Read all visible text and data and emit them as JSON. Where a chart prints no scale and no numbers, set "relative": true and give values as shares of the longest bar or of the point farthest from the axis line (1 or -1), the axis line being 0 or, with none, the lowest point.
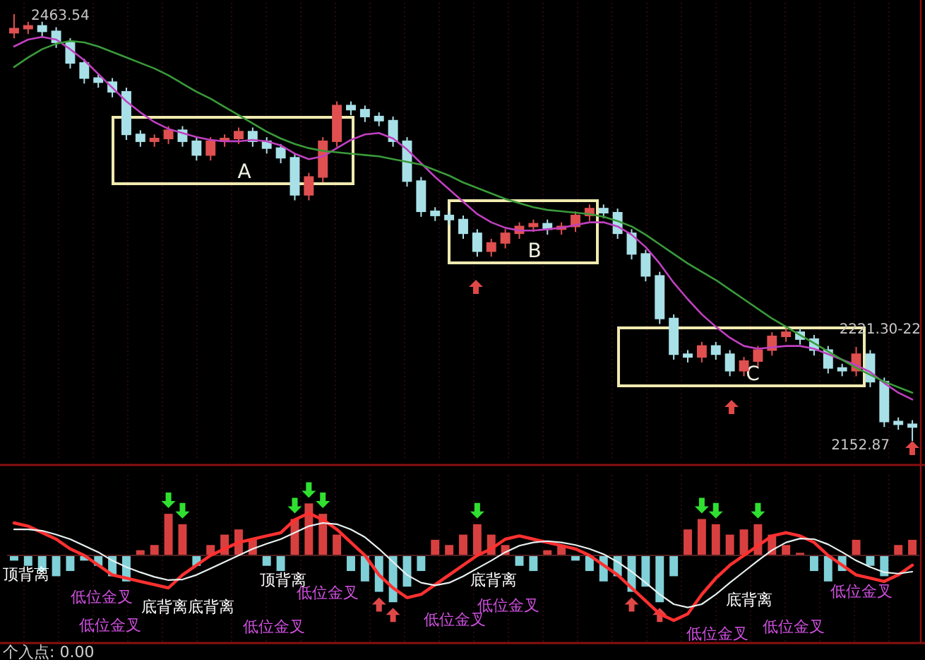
{
  "chart_data": [
    {
      "type": "candlestick",
      "tick_labels": false,
      "grid": "x",
      "categories": [
        null,
        null,
        null,
        null,
        null,
        null,
        null,
        null,
        null,
        null,
        null,
        null,
        null,
        null,
        null,
        null,
        null,
        null,
        null,
        null,
        null,
        null,
        null,
        null,
        null,
        null,
        null,
        null,
        null,
        null,
        null,
        null,
        null,
        null,
        null,
        null,
        null,
        null,
        null,
        null,
        null,
        null,
        null,
        null,
        null,
        null,
        null,
        null,
        null,
        null,
        null,
        null,
        null,
        null,
        null,
        null,
        null,
        null,
        null,
        null,
        null,
        null,
        null,
        null,
        null
      ],
      "ohlc": [
        [
          2450,
          2463.54,
          2446,
          2453
        ],
        [
          2453,
          2458,
          2449,
          2455
        ],
        [
          2455,
          2458,
          2447,
          2451
        ],
        [
          2451,
          2454,
          2439,
          2443
        ],
        [
          2443,
          2446,
          2424,
          2428
        ],
        [
          2428,
          2431,
          2413,
          2417
        ],
        [
          2417,
          2420,
          2410,
          2414
        ],
        [
          2414,
          2417,
          2403,
          2407
        ],
        [
          2407,
          2410,
          2372,
          2376
        ],
        [
          2376,
          2379,
          2367,
          2371
        ],
        [
          2371,
          2376,
          2367,
          2373
        ],
        [
          2373,
          2382,
          2369,
          2379
        ],
        [
          2379,
          2382,
          2367,
          2371
        ],
        [
          2371,
          2374,
          2357,
          2361
        ],
        [
          2361,
          2374,
          2357,
          2371
        ],
        [
          2371,
          2376,
          2367,
          2373
        ],
        [
          2373,
          2381,
          2369,
          2378
        ],
        [
          2378,
          2381,
          2367,
          2371
        ],
        [
          2371,
          2374,
          2362,
          2366
        ],
        [
          2366,
          2369,
          2355,
          2359
        ],
        [
          2359,
          2362,
          2328,
          2332
        ],
        [
          2332,
          2348,
          2328,
          2345
        ],
        [
          2345,
          2374,
          2341,
          2371
        ],
        [
          2371,
          2400,
          2367,
          2397
        ],
        [
          2397,
          2400,
          2390,
          2394
        ],
        [
          2394,
          2397,
          2385,
          2389
        ],
        [
          2389,
          2392,
          2382,
          2386
        ],
        [
          2386,
          2389,
          2367,
          2371
        ],
        [
          2371,
          2374,
          2338,
          2342
        ],
        [
          2342,
          2345,
          2316,
          2320
        ],
        [
          2320,
          2323,
          2313,
          2317
        ],
        [
          2317,
          2320,
          2310,
          2314
        ],
        [
          2314,
          2317,
          2300,
          2304
        ],
        [
          2304,
          2307,
          2287,
          2291
        ],
        [
          2291,
          2300,
          2287,
          2297
        ],
        [
          2297,
          2307,
          2293,
          2304
        ],
        [
          2304,
          2312,
          2300,
          2309
        ],
        [
          2309,
          2314,
          2305,
          2311
        ],
        [
          2311,
          2314,
          2303,
          2307
        ],
        [
          2307,
          2312,
          2303,
          2309
        ],
        [
          2309,
          2320,
          2305,
          2317
        ],
        [
          2317,
          2325,
          2313,
          2322
        ],
        [
          2322,
          2325,
          2315,
          2319
        ],
        [
          2319,
          2322,
          2300,
          2304
        ],
        [
          2304,
          2307,
          2285,
          2289
        ],
        [
          2289,
          2292,
          2269,
          2273
        ],
        [
          2273,
          2276,
          2238,
          2242
        ],
        [
          2242,
          2245,
          2212,
          2216
        ],
        [
          2216,
          2219,
          2210,
          2214
        ],
        [
          2214,
          2225,
          2210,
          2222
        ],
        [
          2222,
          2225,
          2212,
          2216
        ],
        [
          2216,
          2219,
          2200,
          2204
        ],
        [
          2204,
          2214,
          2200,
          2211
        ],
        [
          2211,
          2222,
          2207,
          2219
        ],
        [
          2219,
          2232,
          2215,
          2229
        ],
        [
          2229,
          2235,
          2225,
          2232
        ],
        [
          2232,
          2235,
          2223,
          2227
        ],
        [
          2227,
          2230,
          2215,
          2219
        ],
        [
          2219,
          2222,
          2202,
          2206
        ],
        [
          2206,
          2209,
          2200,
          2204
        ],
        [
          2204,
          2221.3,
          2200,
          2216
        ],
        [
          2216,
          2219,
          2192,
          2196
        ],
        [
          2196,
          2199,
          2163,
          2167
        ],
        [
          2167,
          2170,
          2161,
          2165
        ],
        [
          2165,
          2168,
          2152.87,
          2163
        ]
      ],
      "series": [
        {
          "type": "line",
          "color": "#c040c0",
          "values": [
            2440,
            2445,
            2447,
            2445,
            2438,
            2430,
            2420,
            2410,
            2400,
            2392,
            2385,
            2380,
            2377,
            2374,
            2372,
            2371,
            2371,
            2372,
            2371,
            2368,
            2362,
            2358,
            2360,
            2366,
            2372,
            2376,
            2377,
            2373,
            2365,
            2355,
            2345,
            2336,
            2327,
            2318,
            2312,
            2308,
            2306,
            2306,
            2307,
            2308,
            2310,
            2312,
            2312,
            2309,
            2303,
            2294,
            2282,
            2268,
            2256,
            2245,
            2236,
            2228,
            2222,
            2220,
            2221,
            2222,
            2222,
            2220,
            2216,
            2212,
            2208,
            2203,
            2195,
            2188,
            2183
          ]
        },
        {
          "type": "line",
          "color": "#3a9a3a",
          "values": [
            2425,
            2432,
            2438,
            2442,
            2444,
            2443,
            2440,
            2436,
            2432,
            2428,
            2424,
            2419,
            2413,
            2407,
            2402,
            2396,
            2390,
            2384,
            2378,
            2373,
            2369,
            2366,
            2364,
            2363,
            2362,
            2361,
            2360,
            2358,
            2356,
            2354,
            2350,
            2346,
            2341,
            2337,
            2333,
            2329,
            2326,
            2323,
            2321,
            2320,
            2319,
            2318,
            2316,
            2313,
            2309,
            2303,
            2296,
            2289,
            2282,
            2276,
            2270,
            2263,
            2256,
            2249,
            2242,
            2236,
            2230,
            2224,
            2218,
            2212,
            2206,
            2201,
            2196,
            2192,
            2188
          ]
        }
      ],
      "annotations": [
        "2463.54",
        "A",
        "B",
        "C",
        "2221.30-22",
        "2152.87"
      ]
    },
    {
      "type": "bar",
      "relative": true,
      "tick_labels": false,
      "grid": "x",
      "categories": [
        null,
        null,
        null,
        null,
        null,
        null,
        null,
        null,
        null,
        null,
        null,
        null,
        null,
        null,
        null,
        null,
        null,
        null,
        null,
        null,
        null,
        null,
        null,
        null,
        null,
        null,
        null,
        null,
        null,
        null,
        null,
        null,
        null,
        null,
        null,
        null,
        null,
        null,
        null,
        null,
        null,
        null,
        null,
        null,
        null,
        null,
        null,
        null,
        null,
        null,
        null,
        null,
        null,
        null,
        null,
        null,
        null,
        null,
        null,
        null,
        null,
        null,
        null,
        null,
        null
      ],
      "values": [
        -0.1,
        -0.2,
        -0.3,
        -0.4,
        -0.3,
        -0.1,
        -0.2,
        -0.4,
        -0.5,
        0.1,
        0.2,
        0.8,
        0.6,
        -0.2,
        0.2,
        0.4,
        0.5,
        0.3,
        -0.2,
        -0.3,
        0.7,
        1.0,
        0.8,
        0.4,
        -0.3,
        -0.5,
        -0.7,
        -0.9,
        -0.6,
        -0.3,
        0.3,
        0.2,
        0.4,
        0.6,
        0.4,
        0.2,
        -0.2,
        -0.3,
        0.1,
        0.2,
        -0.1,
        -0.3,
        -0.5,
        -0.4,
        -0.7,
        -0.6,
        -0.9,
        -0.4,
        0.5,
        0.7,
        0.6,
        0.4,
        0.5,
        0.6,
        0.4,
        0.2,
        0.05,
        -0.3,
        -0.5,
        -0.3,
        0.3,
        -0.2,
        -0.4,
        0.2,
        0.3
      ],
      "colors": [
        "#80d0d8",
        "#80d0d8",
        "#80d0d8",
        "#80d0d8",
        "#80d0d8",
        "#80d0d8",
        "#80d0d8",
        "#80d0d8",
        "#80d0d8",
        "#d84040",
        "#d84040",
        "#d84040",
        "#d84040",
        "#80d0d8",
        "#d84040",
        "#d84040",
        "#d84040",
        "#d84040",
        "#80d0d8",
        "#80d0d8",
        "#d84040",
        "#d84040",
        "#d84040",
        "#d84040",
        "#80d0d8",
        "#80d0d8",
        "#80d0d8",
        "#80d0d8",
        "#80d0d8",
        "#80d0d8",
        "#d84040",
        "#d84040",
        "#d84040",
        "#d84040",
        "#d84040",
        "#d84040",
        "#80d0d8",
        "#80d0d8",
        "#d84040",
        "#d84040",
        "#80d0d8",
        "#80d0d8",
        "#80d0d8",
        "#80d0d8",
        "#80d0d8",
        "#80d0d8",
        "#80d0d8",
        "#80d0d8",
        "#d84040",
        "#d84040",
        "#d84040",
        "#d84040",
        "#d84040",
        "#d84040",
        "#d84040",
        "#d84040",
        "#d84040",
        "#80d0d8",
        "#80d0d8",
        "#80d0d8",
        "#d84040",
        "#80d0d8",
        "#80d0d8",
        "#d84040",
        "#d84040"
      ],
      "annotations": [
        "顶背离",
        "低位金叉",
        "低位金叉",
        "底背离底背离",
        "低位金叉",
        "顶背离",
        "低位金叉",
        "低位金叉",
        "底背离",
        "低位金叉",
        "低位金叉",
        "底背离",
        "低位金叉",
        "低位金叉",
        "个入点: 0.00"
      ]
    },
    {
      "type": "line",
      "relative": true,
      "tick_labels": false,
      "categories": [
        null,
        null,
        null,
        null,
        null,
        null,
        null,
        null,
        null,
        null,
        null,
        null,
        null,
        null,
        null,
        null,
        null,
        null,
        null,
        null,
        null,
        null,
        null,
        null,
        null,
        null,
        null,
        null,
        null,
        null,
        null,
        null,
        null,
        null,
        null,
        null,
        null,
        null,
        null,
        null,
        null,
        null,
        null,
        null,
        null,
        null,
        null,
        null,
        null,
        null,
        null,
        null,
        null,
        null,
        null,
        null,
        null,
        null,
        null,
        null,
        null,
        null,
        null,
        null,
        null
      ],
      "series": [
        {
          "color": "#ff3030",
          "values": [
            0.5,
            0.45,
            0.35,
            0.25,
            0.1,
            0.0,
            -0.15,
            -0.3,
            -0.35,
            -0.4,
            -0.45,
            -0.5,
            -0.3,
            -0.15,
            0.0,
            0.1,
            0.2,
            0.25,
            0.3,
            0.35,
            0.55,
            0.65,
            0.55,
            0.4,
            0.2,
            0.0,
            -0.3,
            -0.5,
            -0.65,
            -0.6,
            -0.45,
            -0.3,
            -0.15,
            0.0,
            0.1,
            0.25,
            0.3,
            0.25,
            0.2,
            0.15,
            0.1,
            0.0,
            -0.15,
            -0.3,
            -0.5,
            -0.7,
            -0.9,
            -1.0,
            -0.9,
            -0.6,
            -0.35,
            -0.15,
            0.0,
            0.15,
            0.3,
            0.35,
            0.3,
            0.2,
            0.0,
            -0.15,
            -0.3,
            -0.35,
            -0.4,
            -0.3,
            -0.15
          ]
        },
        {
          "color": "#e8f0f0",
          "values": [
            0.4,
            0.4,
            0.38,
            0.32,
            0.25,
            0.15,
            0.05,
            -0.08,
            -0.18,
            -0.26,
            -0.33,
            -0.38,
            -0.37,
            -0.3,
            -0.2,
            -0.1,
            0.0,
            0.1,
            0.18,
            0.25,
            0.35,
            0.45,
            0.5,
            0.48,
            0.4,
            0.28,
            0.1,
            -0.1,
            -0.3,
            -0.42,
            -0.46,
            -0.42,
            -0.32,
            -0.2,
            -0.08,
            0.05,
            0.15,
            0.2,
            0.22,
            0.2,
            0.16,
            0.1,
            0.02,
            -0.1,
            -0.25,
            -0.42,
            -0.6,
            -0.75,
            -0.8,
            -0.75,
            -0.6,
            -0.42,
            -0.25,
            -0.08,
            0.08,
            0.2,
            0.26,
            0.25,
            0.17,
            0.05,
            -0.08,
            -0.18,
            -0.26,
            -0.28,
            -0.25
          ]
        }
      ]
    }
  ]
}
